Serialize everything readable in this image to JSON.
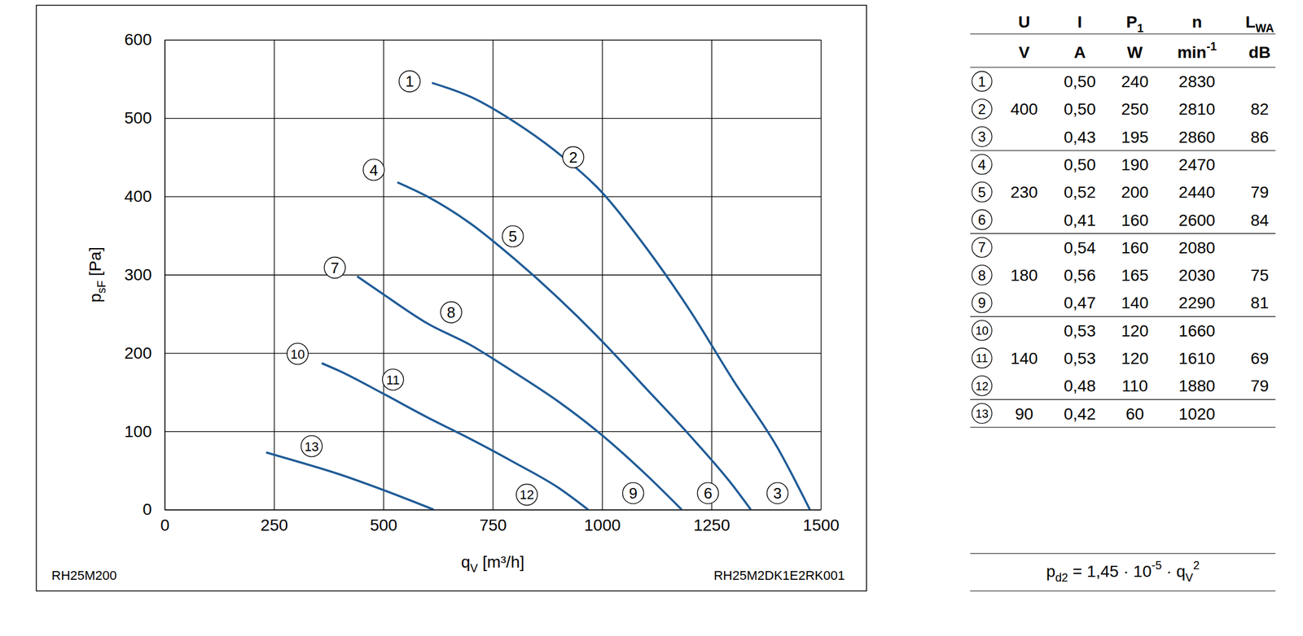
{
  "chart_data": {
    "type": "line",
    "x_label": [
      {
        "text": "q"
      },
      {
        "text": "V",
        "sub": true
      },
      {
        "text": " [m³/h]"
      }
    ],
    "y_label": [
      {
        "text": "p"
      },
      {
        "text": "sF",
        "sub": true
      },
      {
        "text": " [Pa]"
      }
    ],
    "xlim": [
      0,
      1500
    ],
    "xticks": [
      0,
      250,
      500,
      750,
      1000,
      1250,
      1500
    ],
    "ylim": [
      0,
      600
    ],
    "yticks": [
      0,
      100,
      200,
      300,
      400,
      500,
      600
    ],
    "grid": true,
    "series": [
      {
        "color": "#1f5b96",
        "line_style": "solid",
        "x": [
          611,
          700,
          800,
          900,
          1000,
          1100,
          1200,
          1300,
          1400,
          1475
        ],
        "values": [
          545,
          527,
          495,
          455,
          405,
          335,
          255,
          165,
          80,
          0
        ]
      },
      {
        "color": "#1f5b96",
        "line_style": "solid",
        "x": [
          532,
          600,
          700,
          800,
          900,
          1000,
          1100,
          1200,
          1300,
          1340
        ],
        "values": [
          418,
          400,
          365,
          320,
          270,
          215,
          155,
          95,
          30,
          0
        ]
      },
      {
        "color": "#1f5b96",
        "line_style": "solid",
        "x": [
          440,
          500,
          600,
          700,
          800,
          900,
          1000,
          1100,
          1182
        ],
        "values": [
          298,
          275,
          238,
          210,
          175,
          138,
          95,
          45,
          0
        ]
      },
      {
        "color": "#1f5b96",
        "line_style": "solid",
        "x": [
          359,
          400,
          500,
          600,
          700,
          800,
          900,
          968
        ],
        "values": [
          187,
          177,
          148,
          118,
          90,
          60,
          28,
          0
        ]
      },
      {
        "color": "#1f5b96",
        "line_style": "solid",
        "x": [
          232,
          300,
          400,
          500,
          615
        ],
        "values": [
          73,
          62,
          45,
          25,
          0
        ]
      }
    ],
    "annotations": [
      {
        "text": "1",
        "x": 560,
        "y": 547
      },
      {
        "text": "2",
        "x": 934,
        "y": 450
      },
      {
        "text": "3",
        "x": 1401,
        "y": 21
      },
      {
        "text": "4",
        "x": 478,
        "y": 434
      },
      {
        "text": "5",
        "x": 796,
        "y": 349
      },
      {
        "text": "6",
        "x": 1242,
        "y": 21
      },
      {
        "text": "7",
        "x": 389,
        "y": 309
      },
      {
        "text": "8",
        "x": 655,
        "y": 252
      },
      {
        "text": "9",
        "x": 1071,
        "y": 21
      },
      {
        "text": "10",
        "x": 304,
        "y": 199
      },
      {
        "text": "11",
        "x": 522,
        "y": 166
      },
      {
        "text": "12",
        "x": 828,
        "y": 19
      },
      {
        "text": "13",
        "x": 336,
        "y": 81
      }
    ],
    "footer": {
      "left": "RH25M200",
      "right": "RH25M2DK1E2RK001"
    }
  },
  "table": {
    "header": [
      [
        {
          "text": "U"
        }
      ],
      [
        {
          "text": "I"
        }
      ],
      [
        {
          "text": "P"
        },
        {
          "text": "1",
          "sub": true
        }
      ],
      [
        {
          "text": "n"
        }
      ],
      [
        {
          "text": "L"
        },
        {
          "text": "WA",
          "sub": true
        }
      ]
    ],
    "units": [
      [
        {
          "text": "V"
        }
      ],
      [
        {
          "text": "A"
        }
      ],
      [
        {
          "text": "W"
        }
      ],
      [
        {
          "text": "min"
        },
        {
          "text": "-1",
          "sup": true
        }
      ],
      [
        {
          "text": "dB"
        }
      ]
    ],
    "groups": [
      {
        "U": "400",
        "rows": [
          [
            "1",
            "0,50",
            "240",
            "2830",
            null
          ],
          [
            "2",
            "0,50",
            "250",
            "2810",
            "82"
          ],
          [
            "3",
            "0,43",
            "195",
            "2860",
            "86"
          ]
        ]
      },
      {
        "U": "230",
        "rows": [
          [
            "4",
            "0,50",
            "190",
            "2470",
            null
          ],
          [
            "5",
            "0,52",
            "200",
            "2440",
            "79"
          ],
          [
            "6",
            "0,41",
            "160",
            "2600",
            "84"
          ]
        ]
      },
      {
        "U": "180",
        "rows": [
          [
            "7",
            "0,54",
            "160",
            "2080",
            null
          ],
          [
            "8",
            "0,56",
            "165",
            "2030",
            "75"
          ],
          [
            "9",
            "0,47",
            "140",
            "2290",
            "81"
          ]
        ]
      },
      {
        "U": "140",
        "rows": [
          [
            "10",
            "0,53",
            "120",
            "1660",
            null
          ],
          [
            "11",
            "0,53",
            "120",
            "1610",
            "69"
          ],
          [
            "12",
            "0,48",
            "110",
            "1880",
            "79"
          ]
        ]
      },
      {
        "U": "90",
        "rows": [
          [
            "13",
            "0,42",
            "60",
            "1020",
            null
          ]
        ]
      }
    ]
  },
  "formula": [
    {
      "text": "p"
    },
    {
      "text": "d2",
      "sub": true
    },
    {
      "text": " = 1,45 · 10"
    },
    {
      "text": "-5",
      "sup": true
    },
    {
      "text": " · q"
    },
    {
      "text": "V",
      "sub": true
    },
    {
      "text": "2",
      "sup": true
    }
  ]
}
